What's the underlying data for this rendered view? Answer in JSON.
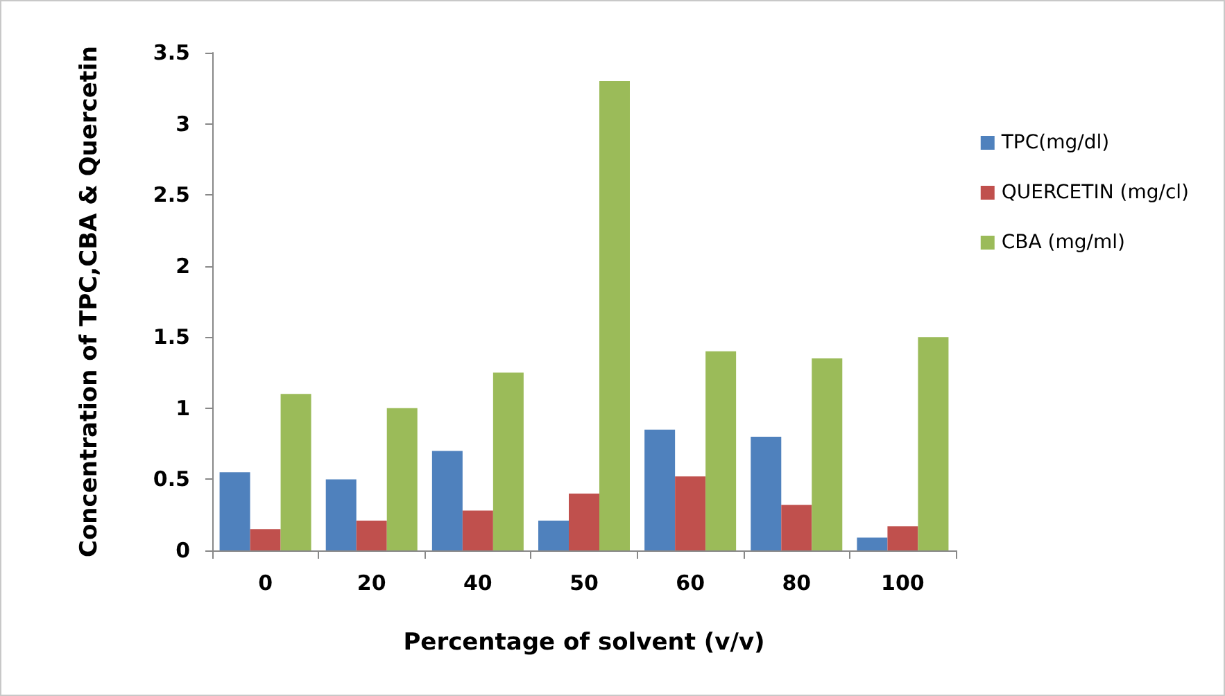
{
  "chart_data": {
    "type": "bar",
    "xlabel": "Percentage of solvent (v/v)",
    "ylabel": "Concentration of TPC,CBA & Quercetin",
    "categories": [
      "0",
      "20",
      "40",
      "50",
      "60",
      "80",
      "100"
    ],
    "series": [
      {
        "name": "TPC(mg/dl)",
        "color": "#4f81bd",
        "values": [
          0.55,
          0.5,
          0.7,
          0.21,
          0.85,
          0.8,
          0.09
        ]
      },
      {
        "name": "QUERCETIN (mg/cl)",
        "color": "#c0504d",
        "values": [
          0.15,
          0.21,
          0.28,
          0.4,
          0.52,
          0.32,
          0.17
        ]
      },
      {
        "name": "CBA (mg/ml)",
        "color": "#9bbb59",
        "values": [
          1.1,
          1.0,
          1.25,
          3.3,
          1.4,
          1.35,
          1.5
        ]
      }
    ],
    "ylim": [
      0,
      3.5
    ],
    "yticks": [
      0,
      0.5,
      1,
      1.5,
      2,
      2.5,
      3,
      3.5
    ],
    "grid": false,
    "legend": "top right"
  }
}
